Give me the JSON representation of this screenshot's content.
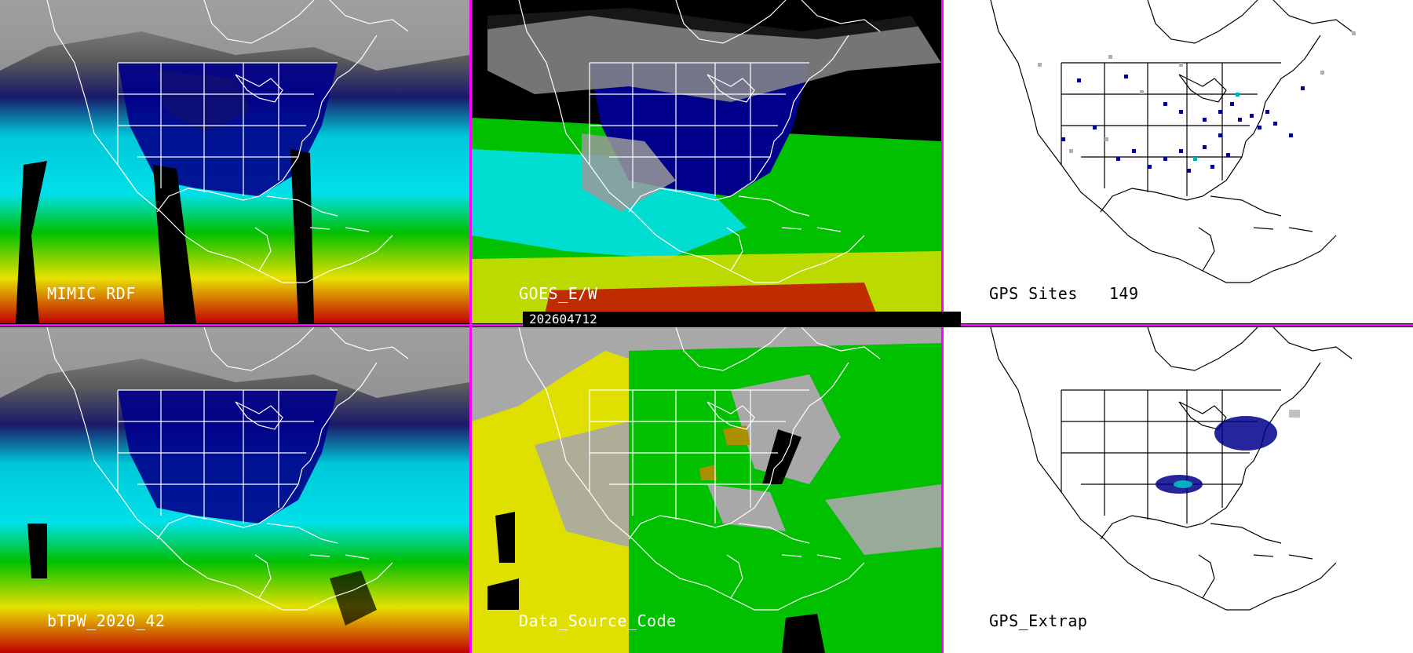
{
  "panels": {
    "mimic": {
      "label": "MIMIC RDF"
    },
    "goes": {
      "label": "GOES_E/W"
    },
    "gps_sites": {
      "label": "GPS Sites",
      "count": "149"
    },
    "btpw": {
      "label": "bTPW_2020_42"
    },
    "data_source": {
      "label": "Data_Source_Code"
    },
    "gps_extrap": {
      "label": "GPS_Extrap"
    }
  },
  "timestamp": "202604712",
  "colors": {
    "separator": "#ff00ff",
    "dry_blue": "#00008b",
    "cyan": "#00e0e8",
    "green": "#00c000",
    "yellow": "#e8e000",
    "red": "#c00000",
    "gray_cloud": "#8a8a8a",
    "source_gray": "#a8a8a8",
    "source_yellow": "#e0e000",
    "source_green": "#00c000"
  },
  "icons": [
    "map-outline-north-america"
  ]
}
